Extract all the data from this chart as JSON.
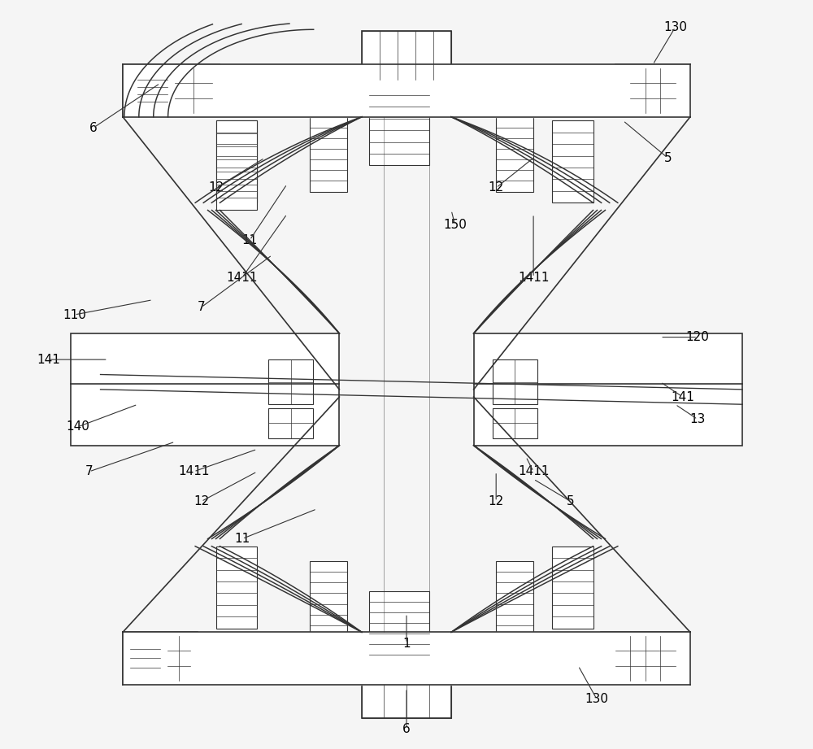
{
  "bg_color": "#f5f5f5",
  "line_color": "#333333",
  "lw": 1.2,
  "fig_w": 10.0,
  "fig_h": 9.21,
  "labels": {
    "130_top": [
      0.86,
      0.965,
      "130"
    ],
    "6_top": [
      0.08,
      0.83,
      "6"
    ],
    "5_top": [
      0.85,
      0.79,
      "5"
    ],
    "12_tl": [
      0.245,
      0.75,
      "12"
    ],
    "11_tl": [
      0.29,
      0.68,
      "11"
    ],
    "1411_tl": [
      0.28,
      0.63,
      "1411"
    ],
    "7_tl": [
      0.225,
      0.59,
      "7"
    ],
    "110": [
      0.055,
      0.58,
      "110"
    ],
    "141_l": [
      0.02,
      0.52,
      "141"
    ],
    "150": [
      0.565,
      0.7,
      "150"
    ],
    "12_tr": [
      0.62,
      0.75,
      "12"
    ],
    "1411_tr": [
      0.67,
      0.63,
      "1411"
    ],
    "120": [
      0.89,
      0.55,
      "120"
    ],
    "141_r": [
      0.87,
      0.47,
      "141"
    ],
    "13": [
      0.89,
      0.44,
      "13"
    ],
    "140": [
      0.06,
      0.43,
      "140"
    ],
    "7_bl": [
      0.075,
      0.37,
      "7"
    ],
    "1411_bl": [
      0.215,
      0.37,
      "1411"
    ],
    "12_bl": [
      0.225,
      0.33,
      "12"
    ],
    "12_br": [
      0.62,
      0.33,
      "12"
    ],
    "5_br": [
      0.72,
      0.33,
      "5"
    ],
    "1411_br": [
      0.67,
      0.37,
      "1411"
    ],
    "11_bl": [
      0.28,
      0.28,
      "11"
    ],
    "1": [
      0.5,
      0.14,
      "1"
    ],
    "130_bot": [
      0.755,
      0.065,
      "130"
    ],
    "6_bot": [
      0.5,
      0.025,
      "6"
    ]
  }
}
